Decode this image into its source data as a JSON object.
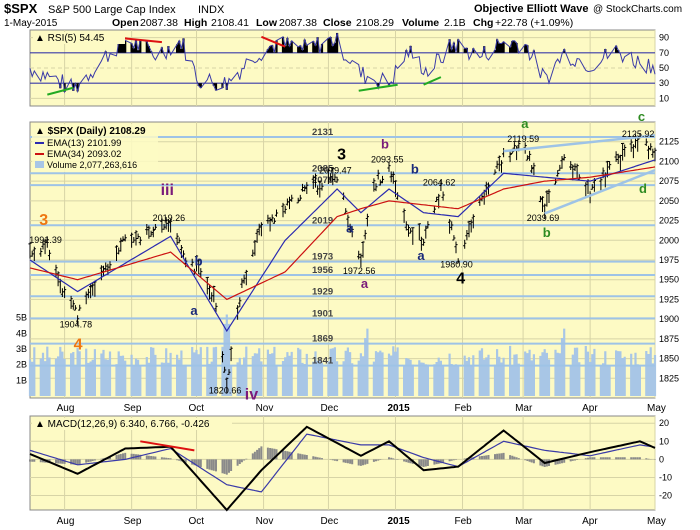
{
  "header": {
    "symbol": "$SPX",
    "name": "S&P 500 Large Cap Index",
    "exchange": "INDX",
    "brand": "Objective Elliott Wave",
    "copyright": "@ StockCharts.com",
    "date": "1-May-2015",
    "open_label": "Open",
    "open": "2087.38",
    "high_label": "High",
    "high": "2108.41",
    "low_label": "Low",
    "low": "2087.38",
    "close_label": "Close",
    "close": "2108.29",
    "volume_label": "Volume",
    "volume": "2.1B",
    "chg_label": "Chg",
    "chg": "+22.78 (+1.09%)"
  },
  "colors": {
    "panel_bg": "#fdfac4",
    "grid": "#d7d4a6",
    "bar": "#000000",
    "ema13": "#2a2ab0",
    "ema34": "#cc1111",
    "volume": "#a8c6e6",
    "fib_line": "#9ec3e6",
    "rsi_line": "#3a3aa8",
    "rsi_fill": "#000000",
    "wave_orange": "#ee7711",
    "wave_purple": "#7a1a7a",
    "wave_navy": "#1a2a7a",
    "wave_green": "#2e8b22",
    "trend_red": "#dd1111",
    "trend_green": "#22aa22"
  },
  "chart_data": [
    {
      "type": "line",
      "title": "RSI(5) 54.45",
      "series": [
        {
          "name": "RSI(5)",
          "x": [
            "2014-07-16",
            "2014-07-28",
            "2014-08-05",
            "2014-08-18",
            "2014-08-29",
            "2014-09-12",
            "2014-09-24",
            "2014-10-02",
            "2014-10-15",
            "2014-10-28",
            "2014-11-07",
            "2014-11-20",
            "2014-12-04",
            "2014-12-16",
            "2014-12-29",
            "2015-01-07",
            "2015-01-16",
            "2015-01-28",
            "2015-02-09",
            "2015-02-20",
            "2015-03-02",
            "2015-03-11",
            "2015-03-20",
            "2015-04-01",
            "2015-04-13",
            "2015-04-24",
            "2015-05-01"
          ],
          "values": [
            50,
            35,
            22,
            60,
            88,
            68,
            85,
            35,
            30,
            68,
            82,
            75,
            88,
            42,
            30,
            72,
            45,
            82,
            65,
            85,
            82,
            35,
            70,
            55,
            72,
            58,
            54.45
          ]
        }
      ],
      "ylim": [
        0,
        100
      ],
      "yticks": [
        10,
        30,
        50,
        70,
        90
      ],
      "annotations": [
        {
          "x": "2014-08-22",
          "x2": "2014-09-15",
          "y": 91,
          "y2": 84,
          "color": "red"
        },
        {
          "x": "2014-10-31",
          "x2": "2014-11-11",
          "y": 91,
          "y2": 78,
          "color": "red"
        },
        {
          "x": "2014-07-24",
          "x2": "2014-08-05",
          "y": 15,
          "y2": 24,
          "color": "green"
        },
        {
          "x": "2014-12-15",
          "x2": "2015-01-02",
          "y": 20,
          "y2": 28,
          "color": "green"
        },
        {
          "x": "2015-01-14",
          "x2": "2015-01-22",
          "y": 28,
          "y2": 38,
          "color": "green"
        }
      ]
    },
    {
      "type": "line",
      "title": "$SPX (Daily) 2108.29",
      "series": [
        {
          "name": "$SPX (Daily) 2108.29",
          "x": [
            "2014-07-16",
            "2014-07-24",
            "2014-07-31",
            "2014-08-07",
            "2014-08-18",
            "2014-08-29",
            "2014-09-12",
            "2014-09-19",
            "2014-09-26",
            "2014-10-03",
            "2014-10-09",
            "2014-10-15",
            "2014-10-22",
            "2014-10-31",
            "2014-11-11",
            "2014-11-21",
            "2014-12-05",
            "2014-12-10",
            "2014-12-16",
            "2014-12-22",
            "2014-12-29",
            "2015-01-06",
            "2015-01-14",
            "2015-01-22",
            "2015-01-30",
            "2015-02-09",
            "2015-02-20",
            "2015-03-02",
            "2015-03-11",
            "2015-03-20",
            "2015-04-01",
            "2015-04-13",
            "2015-04-24",
            "2015-05-01"
          ],
          "values": [
            1985,
            1991.39,
            1940,
            1904.78,
            1955,
            2000,
            2010,
            2019.26,
            1975,
            1960,
            1930,
            1820.66,
            1940,
            2018,
            2040,
            2065,
            2079.47,
            2030,
            1972.56,
            2070,
            2093.55,
            2015,
            2000,
            2064.62,
            1980.9,
            2050,
            2105,
            2119.59,
            2039.69,
            2105,
            2060,
            2100,
            2125.92,
            2108.29
          ]
        },
        {
          "name": "EMA(13) 2101.99",
          "x": [
            "2014-07-16",
            "2014-08-07",
            "2014-09-19",
            "2014-10-15",
            "2014-11-11",
            "2014-12-05",
            "2014-12-16",
            "2014-12-29",
            "2015-01-14",
            "2015-01-30",
            "2015-02-20",
            "2015-03-11",
            "2015-04-01",
            "2015-05-01"
          ],
          "values": [
            1975,
            1935,
            2005,
            1885,
            2000,
            2065,
            2035,
            2065,
            2035,
            2030,
            2085,
            2080,
            2075,
            2101.99
          ]
        },
        {
          "name": "EMA(34) 2093.02",
          "x": [
            "2014-07-16",
            "2014-08-07",
            "2014-09-19",
            "2014-10-15",
            "2014-11-11",
            "2014-12-05",
            "2014-12-16",
            "2014-12-29",
            "2015-01-14",
            "2015-01-30",
            "2015-02-20",
            "2015-03-11",
            "2015-04-01",
            "2015-05-01"
          ],
          "values": [
            1965,
            1950,
            1985,
            1925,
            1960,
            2030,
            2040,
            2050,
            2045,
            2040,
            2065,
            2075,
            2080,
            2093.02
          ]
        }
      ],
      "volume": {
        "name": "Volume 2,077,263,616",
        "ylim": [
          0,
          6
        ],
        "ticks": [
          "1B",
          "2B",
          "3B",
          "4B",
          "5B"
        ],
        "spikes": [
          {
            "x": "2014-10-15",
            "value": 5.2
          },
          {
            "x": "2014-12-19",
            "value": 4.3
          },
          {
            "x": "2015-03-20",
            "value": 4.3
          }
        ]
      },
      "ylim": [
        1800,
        2150
      ],
      "yticks": [
        1825,
        1850,
        1875,
        1900,
        1925,
        1950,
        1975,
        2000,
        2025,
        2050,
        2075,
        2100,
        2125
      ],
      "xtick_labels": [
        {
          "x": "2014-08-01",
          "label": "Aug"
        },
        {
          "x": "2014-09-01",
          "label": "Sep"
        },
        {
          "x": "2014-10-01",
          "label": "Oct"
        },
        {
          "x": "2014-11-01",
          "label": "Nov"
        },
        {
          "x": "2014-12-01",
          "label": "Dec"
        },
        {
          "x": "2015-01-01",
          "label": "2015"
        },
        {
          "x": "2015-02-01",
          "label": "Feb"
        },
        {
          "x": "2015-03-01",
          "label": "Mar"
        },
        {
          "x": "2015-04-01",
          "label": "Apr"
        },
        {
          "x": "2015-05-01",
          "label": "May"
        }
      ],
      "levels": [
        {
          "value": 2131,
          "label": "2131"
        },
        {
          "value": 2085,
          "label": "2085"
        },
        {
          "value": 2070,
          "label": "2070"
        },
        {
          "value": 2019,
          "label": "2019"
        },
        {
          "value": 1973,
          "label": "1973"
        },
        {
          "value": 1956,
          "label": "1956"
        },
        {
          "value": 1929,
          "label": "1929"
        },
        {
          "value": 1901,
          "label": "1901"
        },
        {
          "value": 1869,
          "label": "1869"
        },
        {
          "value": 1841,
          "label": "1841"
        }
      ],
      "price_labels": [
        {
          "x": "2014-07-24",
          "y": 1991.39,
          "label": "1991.39"
        },
        {
          "x": "2014-08-07",
          "y": 1904.78,
          "label": "1904.78"
        },
        {
          "x": "2014-09-19",
          "y": 2019.26,
          "label": "2019.26"
        },
        {
          "x": "2014-10-15",
          "y": 1820.66,
          "label": "1820.66"
        },
        {
          "x": "2014-12-05",
          "y": 2079.47,
          "label": "2079.47"
        },
        {
          "x": "2014-12-16",
          "y": 1972.56,
          "label": "1972.56"
        },
        {
          "x": "2014-12-29",
          "y": 2093.55,
          "label": "2093.55"
        },
        {
          "x": "2015-01-22",
          "y": 2064.62,
          "label": "2064.62"
        },
        {
          "x": "2015-01-30",
          "y": 1980.9,
          "label": "1980.90"
        },
        {
          "x": "2015-03-02",
          "y": 2119.59,
          "label": "2119.59"
        },
        {
          "x": "2015-03-11",
          "y": 2039.69,
          "label": "2039.69"
        },
        {
          "x": "2015-04-24",
          "y": 2125.92,
          "label": "2125.92"
        }
      ],
      "wave_labels": [
        {
          "x": "2014-07-24",
          "y": 1991.39,
          "label": "3",
          "color": "orange"
        },
        {
          "x": "2014-08-07",
          "y": 1904.78,
          "label": "4",
          "color": "orange"
        },
        {
          "x": "2014-09-19",
          "y": 2019.26,
          "label": "iii",
          "color": "purple"
        },
        {
          "x": "2014-10-15",
          "y": 1820.66,
          "label": "iv",
          "color": "purple"
        },
        {
          "x": "2014-10-02",
          "y": 1968,
          "label": "b",
          "color": "navy"
        },
        {
          "x": "2014-09-30",
          "y": 1905,
          "label": "a",
          "color": "navy"
        },
        {
          "x": "2014-12-05",
          "y": 2079.47,
          "label": "3",
          "color": "black"
        },
        {
          "x": "2014-12-11",
          "y": 2010,
          "label": "a",
          "color": "navy"
        },
        {
          "x": "2014-12-16",
          "y": 1972.56,
          "label": "a",
          "color": "purple"
        },
        {
          "x": "2014-12-29",
          "y": 2093.55,
          "label": "b",
          "color": "purple"
        },
        {
          "x": "2015-01-22",
          "y": 2064.62,
          "label": "b",
          "color": "navy"
        },
        {
          "x": "2015-01-13",
          "y": 1975,
          "label": "a",
          "color": "navy"
        },
        {
          "x": "2015-01-30",
          "y": 1980.9,
          "label": "4",
          "color": "black"
        },
        {
          "x": "2015-03-02",
          "y": 2119.59,
          "label": "a",
          "color": "green"
        },
        {
          "x": "2015-03-11",
          "y": 2039.69,
          "label": "b",
          "color": "green"
        },
        {
          "x": "2015-04-24",
          "y": 2125.92,
          "label": "c",
          "color": "green"
        },
        {
          "x": "2015-05-01",
          "y": 2075,
          "label": "d",
          "color": "green"
        }
      ],
      "trendlines": [
        {
          "x": "2015-02-20",
          "x2": "2015-05-01",
          "y": 2113,
          "y2": 2133
        },
        {
          "x": "2015-03-11",
          "x2": "2015-05-01",
          "y": 2034,
          "y2": 2089
        }
      ]
    },
    {
      "type": "line",
      "title": "MACD(12,26,9) 6.340, 6.766, -0.426",
      "series": [
        {
          "name": "MACD",
          "x": [
            "2014-07-16",
            "2014-08-07",
            "2014-08-29",
            "2014-09-19",
            "2014-10-15",
            "2014-10-31",
            "2014-11-21",
            "2014-12-16",
            "2014-12-29",
            "2015-01-14",
            "2015-01-30",
            "2015-02-20",
            "2015-03-11",
            "2015-04-01",
            "2015-04-24",
            "2015-05-01"
          ],
          "values": [
            3,
            -8,
            6,
            7,
            -28,
            -6,
            18,
            2,
            10,
            -6,
            -4,
            16,
            -2,
            4,
            10,
            6.34
          ]
        },
        {
          "name": "Signal",
          "x": [
            "2014-07-16",
            "2014-08-07",
            "2014-08-29",
            "2014-09-19",
            "2014-10-15",
            "2014-10-31",
            "2014-11-21",
            "2014-12-16",
            "2014-12-29",
            "2015-01-14",
            "2015-01-30",
            "2015-02-20",
            "2015-03-11",
            "2015-04-01",
            "2015-04-24",
            "2015-05-01"
          ],
          "values": [
            5,
            -3,
            0,
            6,
            -14,
            -18,
            14,
            8,
            8,
            1,
            -4,
            10,
            5,
            2,
            8,
            6.766
          ]
        }
      ],
      "ylim": [
        -28,
        24
      ],
      "yticks": [
        -20,
        -10,
        0,
        10,
        20
      ],
      "annotations": [
        {
          "x": "2014-09-05",
          "x2": "2014-09-30",
          "y": 10,
          "y2": 5,
          "color": "red"
        }
      ]
    }
  ]
}
